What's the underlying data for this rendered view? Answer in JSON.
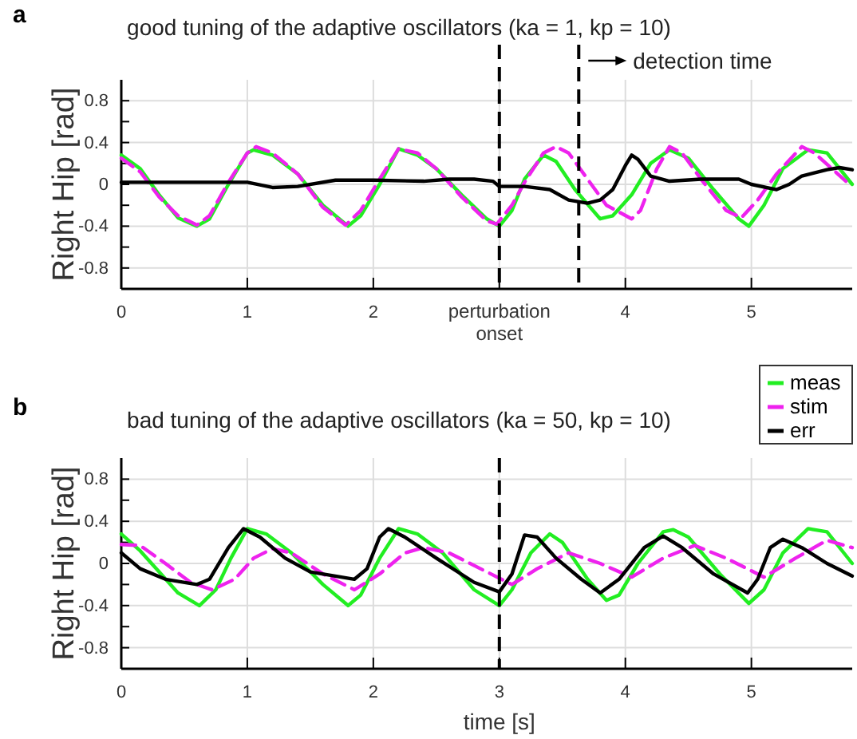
{
  "chart_data": [
    {
      "type": "line",
      "title": "good tuning of the adaptive oscillators (ka = 1, kp = 10)",
      "ylabel": "Right Hip [rad]",
      "annotations": [
        "a"
      ],
      "xlim": [
        0,
        5.8
      ],
      "xticks": [
        0,
        1,
        2,
        {
          "value": 3,
          "label": null
        },
        4,
        5
      ],
      "ylim": [
        -1,
        1
      ],
      "yticks": [
        -0.8,
        {
          "value": -0.6,
          "label": null
        },
        -0.4,
        {
          "value": -0.2,
          "label": null
        },
        0,
        {
          "value": 0.2,
          "label": null
        },
        0.4,
        {
          "value": 0.6,
          "label": null
        },
        0.8
      ],
      "grid": true,
      "legend": "bottom right",
      "ref_lines": [
        {
          "axis": "x",
          "value": 3,
          "label": "perturbation onset",
          "line_style": "dashed",
          "color": "#000000"
        },
        {
          "axis": "x",
          "value": 3.63,
          "label": "detection time",
          "line_style": "dashed",
          "color": "#000000"
        }
      ],
      "series": [
        {
          "name": "meas",
          "color": "#22ee22",
          "line_style": "solid",
          "x": [
            0,
            0.15,
            0.3,
            0.45,
            0.6,
            0.7,
            0.85,
            1.0,
            1.05,
            1.2,
            1.4,
            1.6,
            1.8,
            1.9,
            2.05,
            2.2,
            2.35,
            2.5,
            2.7,
            2.9,
            3.0,
            3.1,
            3.2,
            3.35,
            3.45,
            3.6,
            3.8,
            3.9,
            4.05,
            4.2,
            4.35,
            4.5,
            4.7,
            4.9,
            4.98,
            5.1,
            5.25,
            5.45,
            5.6,
            5.8
          ],
          "values": [
            0.28,
            0.15,
            -0.1,
            -0.32,
            -0.4,
            -0.33,
            0,
            0.3,
            0.33,
            0.28,
            0.1,
            -0.2,
            -0.4,
            -0.3,
            0,
            0.34,
            0.28,
            0.15,
            -0.1,
            -0.33,
            -0.4,
            -0.25,
            0.05,
            0.28,
            0.22,
            -0.05,
            -0.33,
            -0.3,
            -0.1,
            0.2,
            0.33,
            0.25,
            -0.05,
            -0.33,
            -0.4,
            -0.2,
            0.15,
            0.33,
            0.3,
            0
          ]
        },
        {
          "name": "stim",
          "color": "#ee22ee",
          "line_style": "dashed",
          "x": [
            0,
            0.15,
            0.3,
            0.45,
            0.6,
            0.7,
            0.85,
            1.0,
            1.07,
            1.2,
            1.4,
            1.6,
            1.78,
            1.9,
            2.05,
            2.2,
            2.35,
            2.5,
            2.7,
            2.9,
            2.98,
            3.1,
            3.2,
            3.35,
            3.45,
            3.55,
            3.7,
            3.85,
            4.05,
            4.12,
            4.25,
            4.35,
            4.45,
            4.6,
            4.8,
            4.92,
            5.05,
            5.2,
            5.4,
            5.5,
            5.75
          ],
          "values": [
            0.25,
            0.12,
            -0.12,
            -0.3,
            -0.39,
            -0.3,
            0.02,
            0.3,
            0.36,
            0.3,
            0.1,
            -0.22,
            -0.39,
            -0.25,
            0.05,
            0.34,
            0.3,
            0.15,
            -0.12,
            -0.35,
            -0.38,
            -0.2,
            0.02,
            0.3,
            0.36,
            0.3,
            0.05,
            -0.2,
            -0.33,
            -0.25,
            0.15,
            0.36,
            0.3,
            0.05,
            -0.25,
            -0.32,
            -0.15,
            0.1,
            0.36,
            0.3,
            0.03
          ]
        },
        {
          "name": "err",
          "color": "#000000",
          "line_style": "solid",
          "x": [
            0,
            0.5,
            1.0,
            1.2,
            1.4,
            1.7,
            2.0,
            2.4,
            2.6,
            2.8,
            2.95,
            3.0,
            3.2,
            3.4,
            3.55,
            3.7,
            3.8,
            3.9,
            4.0,
            4.05,
            4.1,
            4.2,
            4.35,
            4.6,
            4.9,
            5.0,
            5.2,
            5.3,
            5.4,
            5.6,
            5.7,
            5.8
          ],
          "values": [
            0.02,
            0.02,
            0.02,
            -0.03,
            -0.02,
            0.04,
            0.04,
            0.03,
            0.05,
            0.05,
            0.03,
            -0.02,
            -0.02,
            -0.05,
            -0.15,
            -0.18,
            -0.15,
            -0.05,
            0.18,
            0.28,
            0.24,
            0.08,
            0.03,
            0.05,
            0.05,
            0,
            -0.05,
            0,
            0.08,
            0.14,
            0.16,
            0.14
          ]
        }
      ]
    },
    {
      "type": "line",
      "title": "bad tuning of the adaptive oscillators (ka = 50, kp = 10)",
      "xlabel": "time [s]",
      "ylabel": "Right Hip [rad]",
      "annotations": [
        "b"
      ],
      "xlim": [
        0,
        5.8
      ],
      "xticks": [
        0,
        1,
        2,
        3,
        4,
        5
      ],
      "ylim": [
        -1,
        1
      ],
      "yticks": [
        -0.8,
        {
          "value": -0.6,
          "label": null
        },
        -0.4,
        {
          "value": -0.2,
          "label": null
        },
        0,
        {
          "value": 0.2,
          "label": null
        },
        0.4,
        {
          "value": 0.6,
          "label": null
        },
        0.8
      ],
      "grid": true,
      "ref_lines": [
        {
          "axis": "x",
          "value": 3,
          "line_style": "dashed",
          "color": "#000000"
        }
      ],
      "series": [
        {
          "color": "#22ee22",
          "line_style": "solid",
          "x": [
            0,
            0.15,
            0.3,
            0.45,
            0.62,
            0.75,
            0.87,
            1.0,
            1.15,
            1.35,
            1.6,
            1.8,
            1.9,
            2.05,
            2.2,
            2.35,
            2.55,
            2.8,
            3.0,
            3.1,
            3.25,
            3.4,
            3.5,
            3.7,
            3.85,
            3.95,
            4.1,
            4.3,
            4.38,
            4.5,
            4.75,
            4.98,
            5.1,
            5.25,
            5.45,
            5.6,
            5.8
          ],
          "values": [
            0.28,
            0.12,
            -0.08,
            -0.28,
            -0.4,
            -0.25,
            0.05,
            0.33,
            0.28,
            0.1,
            -0.2,
            -0.4,
            -0.3,
            0.05,
            0.33,
            0.28,
            0.1,
            -0.25,
            -0.4,
            -0.25,
            0.1,
            0.28,
            0.2,
            -0.15,
            -0.35,
            -0.3,
            0,
            0.3,
            0.32,
            0.25,
            -0.1,
            -0.38,
            -0.25,
            0.1,
            0.33,
            0.3,
            0
          ]
        },
        {
          "color": "#ee22ee",
          "line_style": "dashed",
          "x": [
            0,
            0.15,
            0.35,
            0.55,
            0.72,
            0.9,
            1.05,
            1.2,
            1.35,
            1.6,
            1.85,
            2.05,
            2.25,
            2.4,
            2.6,
            2.85,
            3.1,
            3.3,
            3.55,
            3.8,
            4.05,
            4.3,
            4.55,
            4.8,
            5.1,
            5.35,
            5.6,
            5.8
          ],
          "values": [
            0.18,
            0.17,
            0,
            -0.18,
            -0.25,
            -0.15,
            0.05,
            0.14,
            0.1,
            -0.1,
            -0.25,
            -0.1,
            0.1,
            0.15,
            0.1,
            -0.05,
            -0.2,
            -0.05,
            0.1,
            0,
            -0.13,
            0.05,
            0.17,
            0.05,
            -0.13,
            0.05,
            0.22,
            0.15
          ]
        },
        {
          "color": "#000000",
          "line_style": "solid",
          "x": [
            0,
            0.15,
            0.35,
            0.6,
            0.7,
            0.85,
            0.97,
            1.1,
            1.3,
            1.5,
            1.85,
            1.95,
            2.05,
            2.12,
            2.25,
            2.5,
            2.8,
            3.0,
            3.1,
            3.2,
            3.3,
            3.45,
            3.65,
            3.8,
            3.95,
            4.15,
            4.3,
            4.45,
            4.7,
            4.97,
            5.05,
            5.15,
            5.25,
            5.4,
            5.6,
            5.8
          ],
          "values": [
            0.1,
            -0.05,
            -0.15,
            -0.2,
            -0.15,
            0.15,
            0.33,
            0.25,
            0.05,
            -0.08,
            -0.15,
            -0.05,
            0.25,
            0.33,
            0.25,
            0.05,
            -0.18,
            -0.27,
            -0.1,
            0.27,
            0.25,
            0.05,
            -0.15,
            -0.28,
            -0.15,
            0.15,
            0.26,
            0.15,
            -0.1,
            -0.28,
            -0.15,
            0.15,
            0.23,
            0.15,
            0,
            -0.12
          ]
        }
      ]
    }
  ]
}
